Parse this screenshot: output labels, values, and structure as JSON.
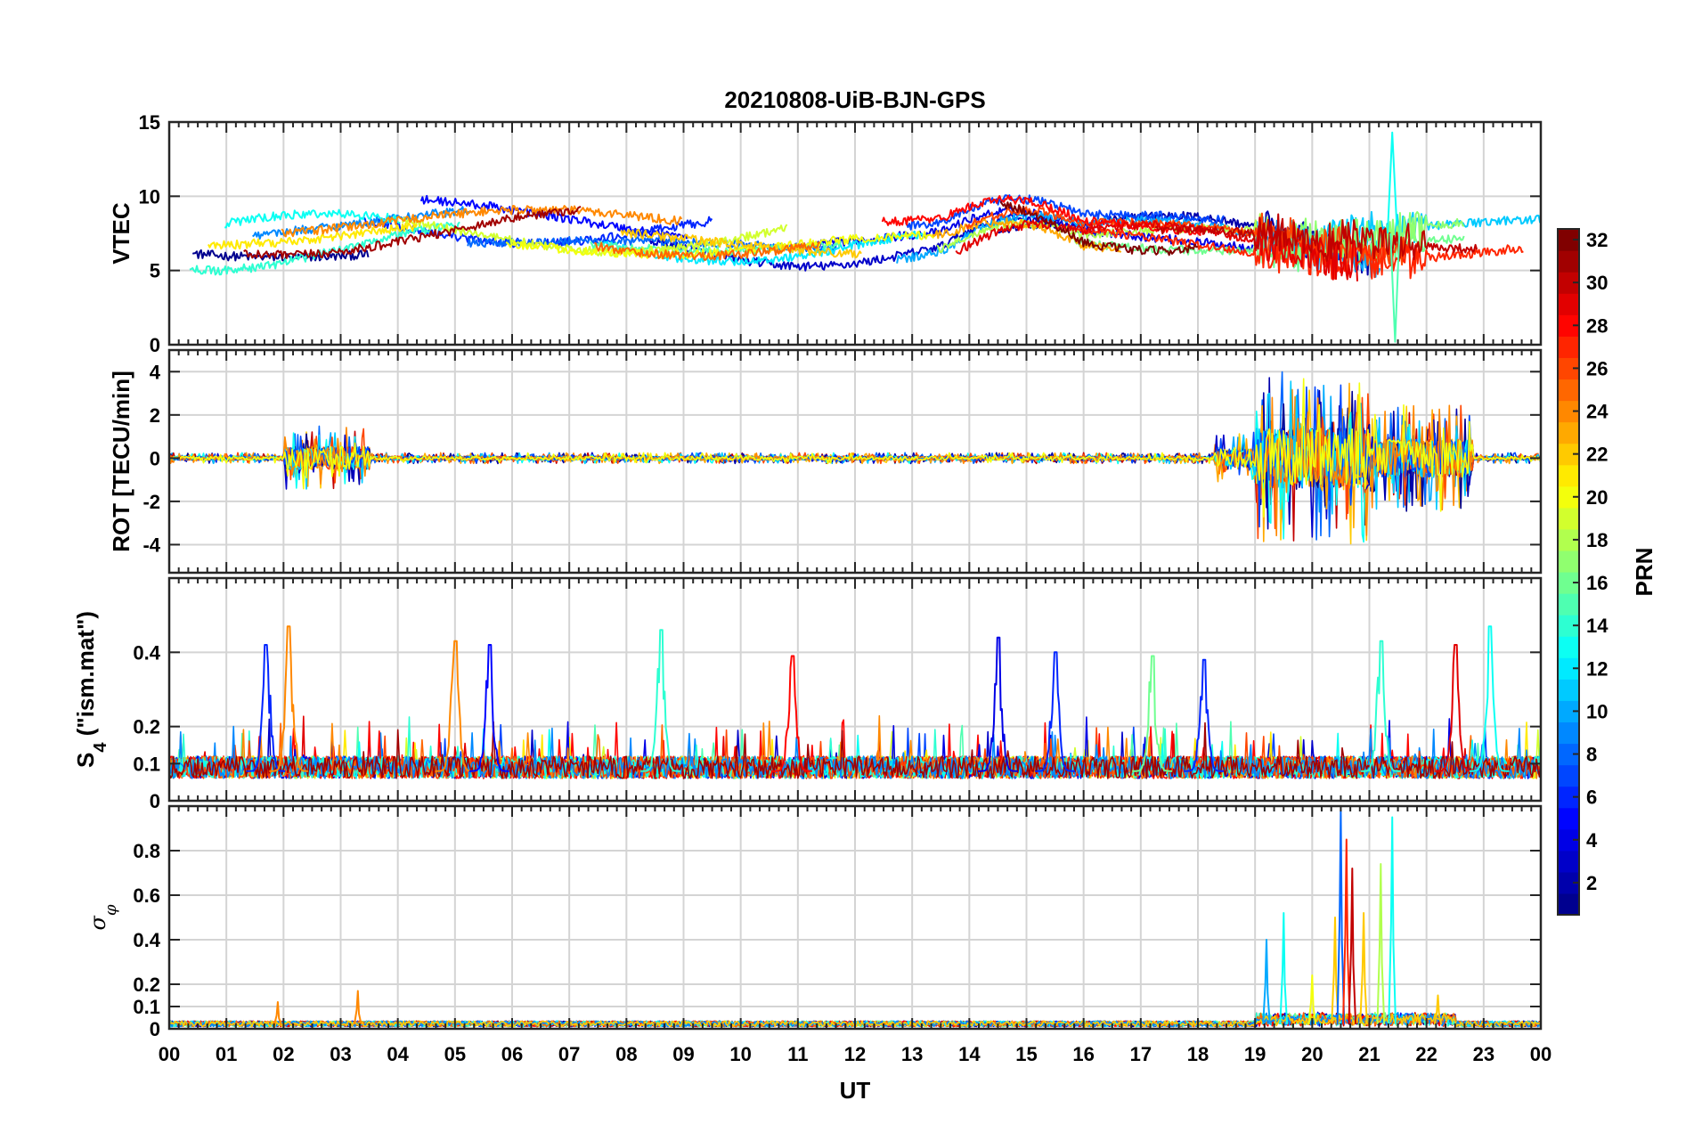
{
  "chart_data": {
    "type": "line",
    "title": "20210808-UiB-BJN-GPS",
    "xlabel": "UT",
    "x_tick_labels": [
      "00",
      "01",
      "02",
      "03",
      "04",
      "05",
      "06",
      "07",
      "08",
      "09",
      "10",
      "11",
      "12",
      "13",
      "14",
      "15",
      "16",
      "17",
      "18",
      "19",
      "20",
      "21",
      "22",
      "23",
      "00"
    ],
    "xlim": [
      0,
      24
    ],
    "grid": true,
    "colorbar": {
      "label": "PRN",
      "range": [
        1,
        32
      ],
      "ticks": [
        "2",
        "4",
        "6",
        "8",
        "10",
        "12",
        "14",
        "16",
        "18",
        "20",
        "22",
        "24",
        "26",
        "28",
        "30",
        "32"
      ],
      "tick_values": [
        2,
        4,
        6,
        8,
        10,
        12,
        14,
        16,
        18,
        20,
        22,
        24,
        26,
        28,
        30,
        32
      ],
      "colormap": [
        "#00008f",
        "#0000ff",
        "#00ffff",
        "#ffff00",
        "#ff0000",
        "#800000"
      ],
      "placement": "right"
    },
    "panels": [
      {
        "id": "vtec",
        "ylabel": "VTEC",
        "ylim": [
          0,
          15
        ],
        "yticks": [
          0,
          5,
          10,
          15
        ],
        "ytick_labels": [
          "0",
          "5",
          "10",
          "15"
        ],
        "typical_range": [
          4,
          11
        ],
        "events": [
          {
            "x": 21.4,
            "y": 14.3,
            "prn": 13
          },
          {
            "x": 21.45,
            "y": 0.2,
            "prn": 15
          }
        ]
      },
      {
        "id": "rot",
        "ylabel": "ROT [TECU/min]",
        "ylim": [
          -5.3,
          5
        ],
        "yticks": [
          -4,
          -2,
          0,
          2,
          4
        ],
        "ytick_labels": [
          "-4",
          "-2",
          "0",
          "2",
          "4"
        ],
        "activity": [
          [
            2.0,
            3.5,
            1.5
          ],
          [
            18.3,
            19.0,
            1.2
          ],
          [
            19.0,
            21.0,
            4.0
          ],
          [
            21.0,
            22.8,
            2.5
          ]
        ]
      },
      {
        "id": "s4",
        "ylabel_parts": [
          "S",
          "4",
          " (\"ism.mat\")"
        ],
        "ylim": [
          0,
          0.6
        ],
        "yticks": [
          0,
          0.1,
          0.2,
          0.4
        ],
        "ytick_labels": [
          "0",
          "0.1",
          "0.2",
          "0.4"
        ],
        "peaks": [
          [
            1.7,
            0.42,
            6
          ],
          [
            2.1,
            0.47,
            24
          ],
          [
            5.0,
            0.43,
            24
          ],
          [
            5.6,
            0.42,
            5
          ],
          [
            8.6,
            0.46,
            14
          ],
          [
            10.9,
            0.39,
            28
          ],
          [
            14.5,
            0.44,
            4
          ],
          [
            15.5,
            0.4,
            6
          ],
          [
            17.2,
            0.39,
            16
          ],
          [
            18.1,
            0.38,
            6
          ],
          [
            21.2,
            0.43,
            14
          ],
          [
            22.5,
            0.42,
            29
          ],
          [
            23.1,
            0.47,
            13
          ]
        ]
      },
      {
        "id": "sigma_phi",
        "ylabel_symbol": "σ",
        "ylabel_sub": "φ",
        "ylim": [
          0,
          1.0
        ],
        "yticks": [
          0,
          0.1,
          0.2,
          0.4,
          0.6,
          0.8
        ],
        "ytick_labels": [
          "0",
          "0.1",
          "0.2",
          "0.4",
          "0.6",
          "0.8"
        ],
        "spikes": [
          [
            1.9,
            0.12,
            24
          ],
          [
            3.3,
            0.17,
            24
          ],
          [
            19.2,
            0.4,
            10
          ],
          [
            19.5,
            0.52,
            13
          ],
          [
            20.0,
            0.24,
            20
          ],
          [
            20.4,
            0.5,
            22
          ],
          [
            20.5,
            0.98,
            8
          ],
          [
            20.6,
            0.85,
            27
          ],
          [
            20.7,
            0.72,
            30
          ],
          [
            20.9,
            0.52,
            22
          ],
          [
            21.2,
            0.74,
            18
          ],
          [
            21.4,
            0.95,
            13
          ],
          [
            22.2,
            0.15,
            22
          ]
        ]
      }
    ]
  }
}
